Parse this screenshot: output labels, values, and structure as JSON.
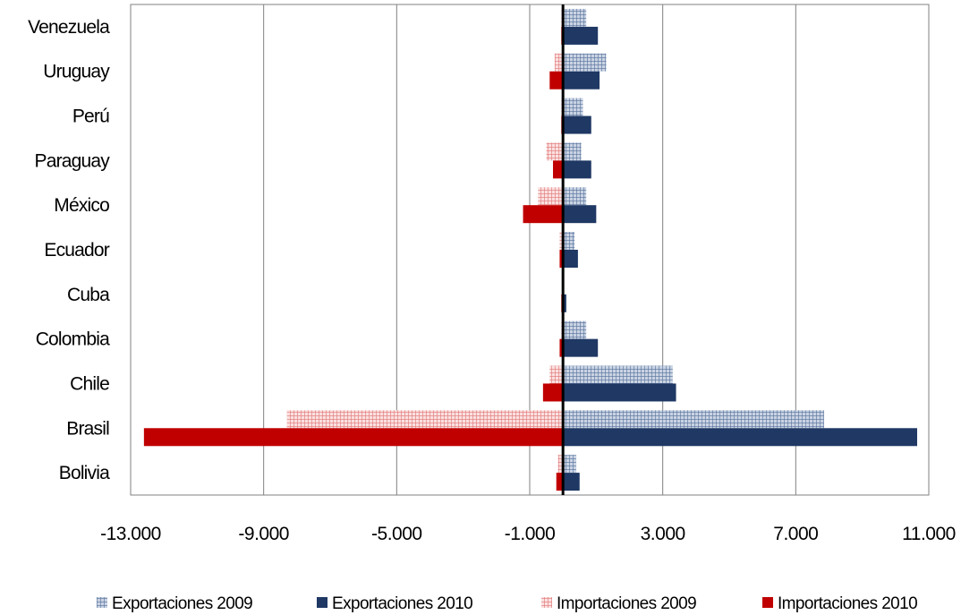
{
  "chart_data": {
    "type": "bar",
    "orientation": "horizontal",
    "categories": [
      "Bolivia",
      "Brasil",
      "Chile",
      "Colombia",
      "Cuba",
      "Ecuador",
      "México",
      "Paraguay",
      "Perú",
      "Uruguay",
      "Venezuela"
    ],
    "series": [
      {
        "name": "Exportaciones 2009",
        "values": [
          400,
          7850,
          3300,
          700,
          0,
          350,
          700,
          550,
          600,
          1300,
          700
        ],
        "color": "#8497b0",
        "pattern": "grid"
      },
      {
        "name": "Exportaciones 2010",
        "values": [
          500,
          10650,
          3400,
          1050,
          100,
          450,
          1000,
          850,
          850,
          1100,
          1050
        ],
        "color": "#1f3864",
        "pattern": "solid"
      },
      {
        "name": "Importaciones 2009",
        "values": [
          -150,
          -8300,
          -400,
          -50,
          0,
          -100,
          -750,
          -500,
          -50,
          -250,
          -50
        ],
        "color": "#e8a0a0",
        "pattern": "grid"
      },
      {
        "name": "Importaciones 2010",
        "values": [
          -200,
          -12600,
          -600,
          -100,
          -50,
          -100,
          -1200,
          -300,
          -50,
          -400,
          -50
        ],
        "color": "#c00000",
        "pattern": "solid"
      }
    ],
    "x_ticks": [
      "-13.000",
      "-9.000",
      "-5.000",
      "-1.000",
      "3.000",
      "7.000",
      "11.000"
    ],
    "xlim": [
      -13000,
      11000
    ],
    "grid": "vertical",
    "legend": "bottom",
    "title": "",
    "xlabel": "",
    "ylabel": ""
  }
}
